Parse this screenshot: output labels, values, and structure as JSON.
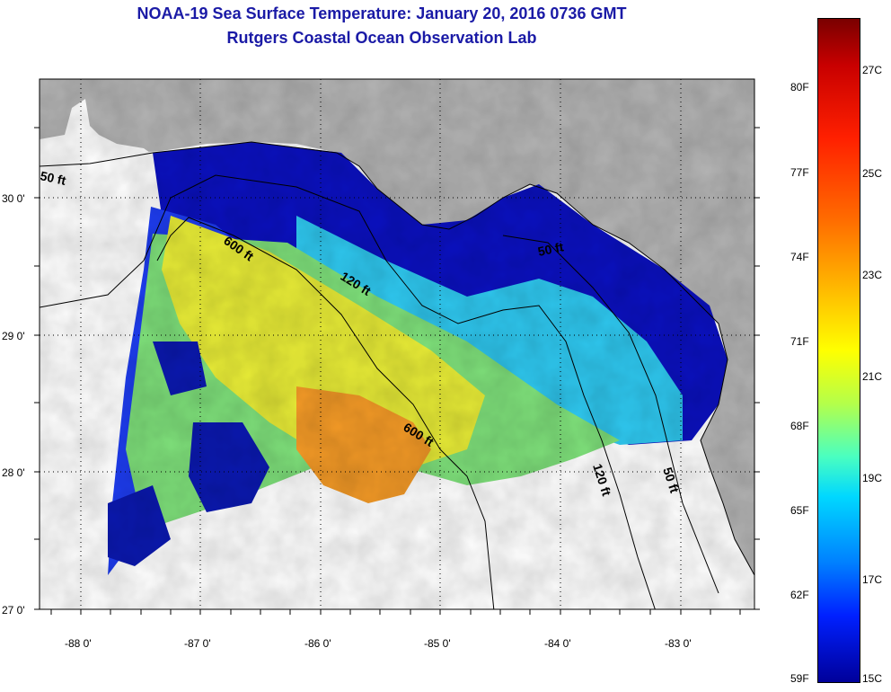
{
  "title": {
    "line1": "NOAA-19 Sea Surface Temperature:  January 20, 2016 0736 GMT",
    "line2": "Rutgers Coastal Ocean Observation Lab"
  },
  "map": {
    "lat_labels": [
      "30 0'",
      "29 0'",
      "28 0'",
      "27 0'"
    ],
    "lon_labels": [
      "-88 0'",
      "-87 0'",
      "-86 0'",
      "-85 0'",
      "-84 0'",
      "-83 0'"
    ],
    "contour_labels": {
      "c50a": "50 ft",
      "c600a": "600 ft",
      "c120a": "120 ft",
      "c50b": "50 ft",
      "c600b": "600 ft",
      "c120b": "120 ft",
      "c50c": "50 ft"
    },
    "colors": {
      "land": "#b4b4b4",
      "no_data": "#ffffff",
      "contour": "#000000"
    }
  },
  "colorbar": {
    "fahrenheit": [
      "80F",
      "77F",
      "74F",
      "71F",
      "68F",
      "65F",
      "62F",
      "59F"
    ],
    "celsius": [
      "27C",
      "25C",
      "23C",
      "21C",
      "19C",
      "17C",
      "15C"
    ]
  }
}
